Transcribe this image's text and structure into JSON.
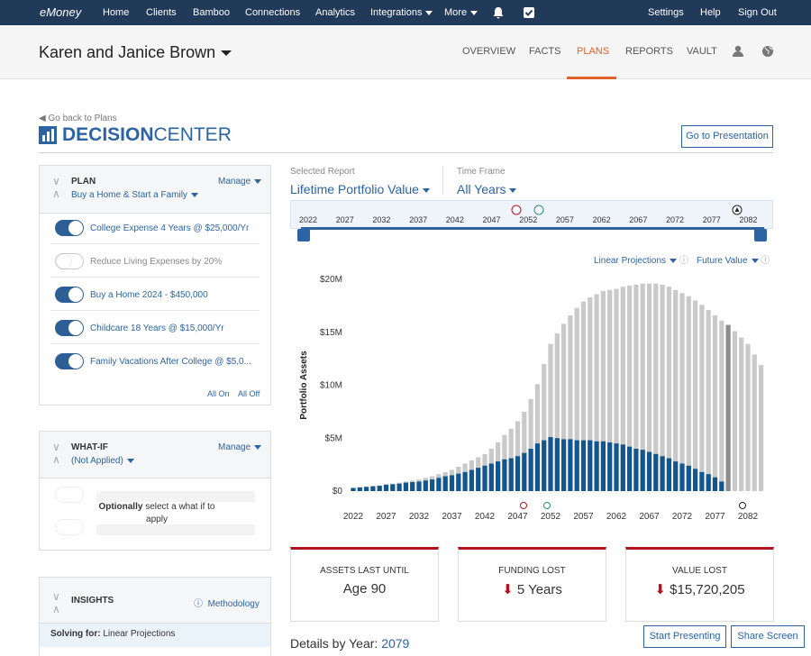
{
  "nav": {
    "brand": "eMoney",
    "items": [
      "Home",
      "Clients",
      "Bamboo",
      "Connections",
      "Analytics",
      "Integrations",
      "More"
    ],
    "right": [
      "Settings",
      "Help",
      "Sign Out"
    ]
  },
  "client": {
    "name": "Karen and Janice Brown",
    "tabs": [
      "OVERVIEW",
      "FACTS",
      "PLANS",
      "REPORTS",
      "VAULT"
    ],
    "active_tab": 2
  },
  "back": "Go back to Plans",
  "center": {
    "bold": "DECISION",
    "light": "CENTER"
  },
  "presentation_button": "Go to Presentation",
  "plan": {
    "title": "PLAN",
    "manage": "Manage",
    "name": "Buy a Home & Start a Family",
    "items": [
      {
        "label": "College Expense 4 Years @ $25,000/Yr",
        "on": true
      },
      {
        "label": "Reduce Living Expenses by 20%",
        "on": false
      },
      {
        "label": "Buy a Home 2024 - $450,000",
        "on": true
      },
      {
        "label": "Childcare 18 Years @ $15,000/Yr",
        "on": true
      },
      {
        "label": "Family Vacations After College @ $5,0...",
        "on": true
      }
    ],
    "all_on": "All On",
    "all_off": "All Off"
  },
  "whatif": {
    "title": "WHAT-IF",
    "manage": "Manage",
    "state": "(Not Applied)",
    "hint_bold": "Optionally",
    "hint": "select a what if to apply"
  },
  "insights": {
    "title": "INSIGHTS",
    "methodology": "Methodology",
    "solving_label": "Solving for:",
    "solving": "Linear Projections"
  },
  "report": {
    "selected_label": "Selected Report",
    "selected": "Lifetime Portfolio Value",
    "timeframe_label": "Time Frame",
    "timeframe": "All Years",
    "projection": "Linear Projections",
    "value_mode": "Future Value"
  },
  "timeline": {
    "labels": [
      "2022",
      "2027",
      "2032",
      "2037",
      "2042",
      "2047",
      "2052",
      "2057",
      "2062",
      "2067",
      "2072",
      "2077",
      "2082"
    ]
  },
  "chart_data": {
    "type": "bar",
    "y_label": "Portfolio Assets",
    "x": [
      2022,
      2023,
      2024,
      2025,
      2026,
      2027,
      2028,
      2029,
      2030,
      2031,
      2032,
      2033,
      2034,
      2035,
      2036,
      2037,
      2038,
      2039,
      2040,
      2041,
      2042,
      2043,
      2044,
      2045,
      2046,
      2047,
      2048,
      2049,
      2050,
      2051,
      2052,
      2053,
      2054,
      2055,
      2056,
      2057,
      2058,
      2059,
      2060,
      2061,
      2062,
      2063,
      2064,
      2065,
      2066,
      2067,
      2068,
      2069,
      2070,
      2071,
      2072,
      2073,
      2074,
      2075,
      2076,
      2077,
      2078,
      2079,
      2080,
      2081,
      2082,
      2083,
      2084
    ],
    "xlim": [
      2021,
      2085
    ],
    "xticks": [
      2022,
      2027,
      2032,
      2037,
      2042,
      2047,
      2052,
      2057,
      2062,
      2067,
      2072,
      2077,
      2082
    ],
    "ylim": [
      0,
      20
    ],
    "yticks": [
      {
        "value": 0,
        "label": "$0"
      },
      {
        "value": 5,
        "label": "$5M"
      },
      {
        "value": 10,
        "label": "$10M"
      },
      {
        "value": 15,
        "label": "$15M"
      },
      {
        "value": 20,
        "label": "$20M"
      }
    ],
    "highlight_color": "#8c8c8c",
    "series": [
      {
        "color": "#c9c9c9",
        "values": [
          0.3,
          0.35,
          0.4,
          0.5,
          0.55,
          0.65,
          0.7,
          0.8,
          0.9,
          1.0,
          1.1,
          1.25,
          1.4,
          1.6,
          1.8,
          2.0,
          2.3,
          2.6,
          2.9,
          3.2,
          3.5,
          4.0,
          4.6,
          5.3,
          5.9,
          6.6,
          7.5,
          8.7,
          10.1,
          12.0,
          13.9,
          14.9,
          15.8,
          16.6,
          17.3,
          17.9,
          18.3,
          18.6,
          18.9,
          19.0,
          19.1,
          19.3,
          19.4,
          19.5,
          19.6,
          19.6,
          19.6,
          19.5,
          19.3,
          19.0,
          18.7,
          18.4,
          18.0,
          17.6,
          17.1,
          16.6,
          16.1,
          15.7,
          15.1,
          14.5,
          13.9,
          12.9,
          11.9
        ]
      },
      {
        "color": "#13558f",
        "values": [
          0.3,
          0.35,
          0.4,
          0.45,
          0.5,
          0.6,
          0.65,
          0.7,
          0.8,
          0.85,
          0.9,
          1.0,
          1.1,
          1.25,
          1.4,
          1.5,
          1.65,
          1.8,
          2.0,
          2.2,
          2.4,
          2.6,
          2.8,
          3.0,
          3.1,
          3.3,
          3.6,
          4.0,
          4.5,
          4.8,
          5.1,
          5.0,
          4.9,
          4.9,
          4.8,
          4.8,
          4.8,
          4.7,
          4.7,
          4.6,
          4.5,
          4.4,
          4.2,
          4.0,
          3.9,
          3.7,
          3.5,
          3.3,
          3.1,
          2.8,
          2.6,
          2.4,
          2.1,
          1.8,
          1.6,
          1.3,
          0.9,
          0,
          0,
          0,
          0,
          0,
          0
        ]
      }
    ]
  },
  "cards": [
    {
      "title": "ASSETS LAST UNTIL",
      "value": "Age 90"
    },
    {
      "title": "FUNDING LOST",
      "value": "5 Years"
    },
    {
      "title": "VALUE LOST",
      "value": "$15,720,205"
    }
  ],
  "details": {
    "label": "Details by Year:",
    "year": 2079
  },
  "buttons": [
    "Start Presenting",
    "Share Screen"
  ]
}
